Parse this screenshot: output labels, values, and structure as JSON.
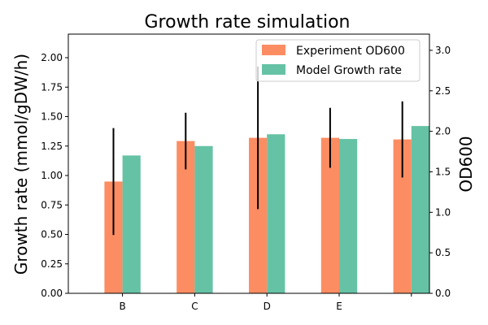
{
  "colors": {
    "experiment": "#fc8d62",
    "model": "#66c2a5",
    "errorbar": "#000000",
    "legend_border": "#cccccc"
  },
  "chart_data": {
    "type": "bar",
    "title": "Growth rate simulation",
    "categories": [
      "B",
      "C",
      "D",
      "E",
      ""
    ],
    "x_tick_labels": [
      "B",
      "C",
      "D",
      "E",
      ""
    ],
    "y_left": {
      "label": "Growth rate (mmol/gDW/h)",
      "lim": [
        0,
        2.2
      ],
      "ticks": [
        0.0,
        0.25,
        0.5,
        0.75,
        1.0,
        1.25,
        1.5,
        1.75,
        2.0
      ],
      "tick_labels": [
        "0.00",
        "0.25",
        "0.50",
        "0.75",
        "1.00",
        "1.25",
        "1.50",
        "1.75",
        "2.00"
      ]
    },
    "y_right": {
      "label": "OD600",
      "lim": [
        0,
        3.2
      ],
      "ticks": [
        0.0,
        0.5,
        1.0,
        1.5,
        2.0,
        2.5,
        3.0
      ],
      "tick_labels": [
        "0.0",
        "0.5",
        "1.0",
        "1.5",
        "2.0",
        "2.5",
        "3.0"
      ]
    },
    "series": [
      {
        "name": "Experiment OD600",
        "axis": "right",
        "values": [
          1.38,
          1.88,
          1.92,
          1.92,
          1.9
        ],
        "error": [
          0.66,
          0.35,
          0.88,
          0.37,
          0.47
        ]
      },
      {
        "name": "Model Growth rate",
        "axis": "left",
        "values": [
          1.17,
          1.25,
          1.35,
          1.31,
          1.42
        ]
      }
    ],
    "legend_position": "top-right",
    "grid": false
  }
}
